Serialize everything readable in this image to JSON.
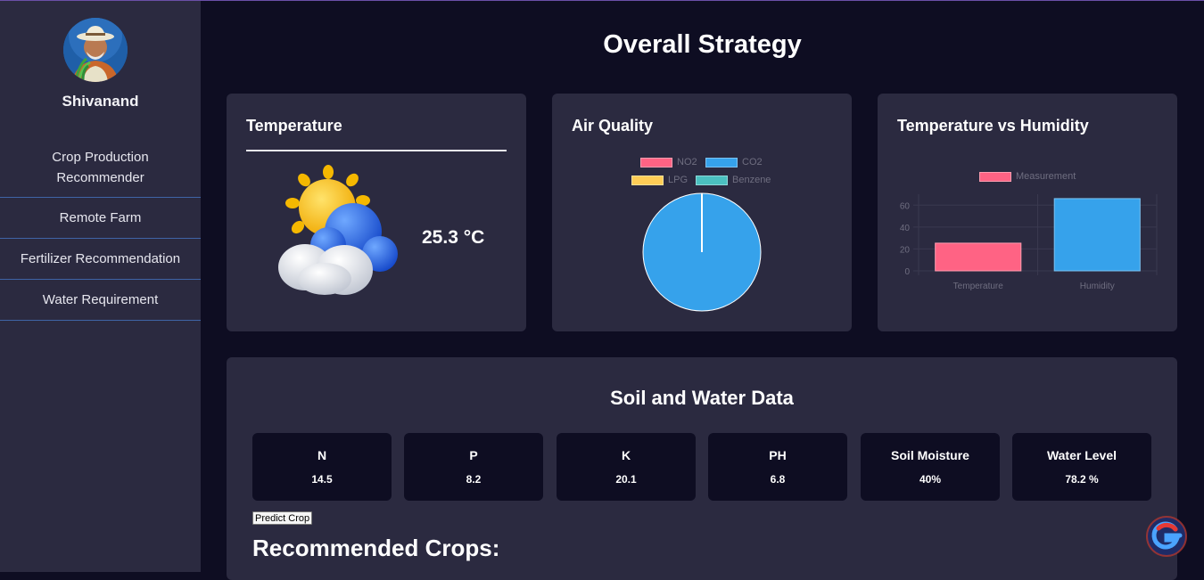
{
  "user": {
    "name": "Shivanand"
  },
  "sidebar": {
    "items": [
      {
        "label": "Crop Production Recommender"
      },
      {
        "label": "Remote Farm"
      },
      {
        "label": "Fertilizer Recommendation"
      },
      {
        "label": "Water Requirement"
      }
    ]
  },
  "page": {
    "title": "Overall Strategy"
  },
  "temperature_card": {
    "title": "Temperature",
    "value": "25.3 °C",
    "icon": "sun-behind-cloud-icon"
  },
  "air_quality_card": {
    "title": "Air Quality",
    "chart_data": {
      "type": "pie",
      "legend": [
        "NO2",
        "CO2",
        "LPG",
        "Benzene"
      ],
      "colors": [
        "#ff6384",
        "#36a2eb",
        "#ffcd56",
        "#4bc0c0"
      ],
      "values": [
        0,
        1,
        0,
        0
      ]
    }
  },
  "temp_humidity_card": {
    "title": "Temperature vs Humidity",
    "chart_data": {
      "type": "bar",
      "categories": [
        "Temperature",
        "Humidity"
      ],
      "series": [
        {
          "name": "Measurement",
          "values": [
            25.3,
            66
          ]
        }
      ],
      "colors": [
        "#ff6384",
        "#36a2eb"
      ],
      "y_ticks": [
        0,
        20,
        40,
        60
      ],
      "ylim": [
        0,
        70
      ]
    }
  },
  "soil_water": {
    "title": "Soil and Water Data",
    "stats": [
      {
        "label": "N",
        "value": "14.5"
      },
      {
        "label": "P",
        "value": "8.2"
      },
      {
        "label": "K",
        "value": "20.1"
      },
      {
        "label": "PH",
        "value": "6.8"
      },
      {
        "label": "Soil Moisture",
        "value": "40%"
      },
      {
        "label": "Water Level",
        "value": "78.2 %"
      }
    ],
    "predict_label": "Predict Crop",
    "recommended_title": "Recommended Crops:"
  }
}
